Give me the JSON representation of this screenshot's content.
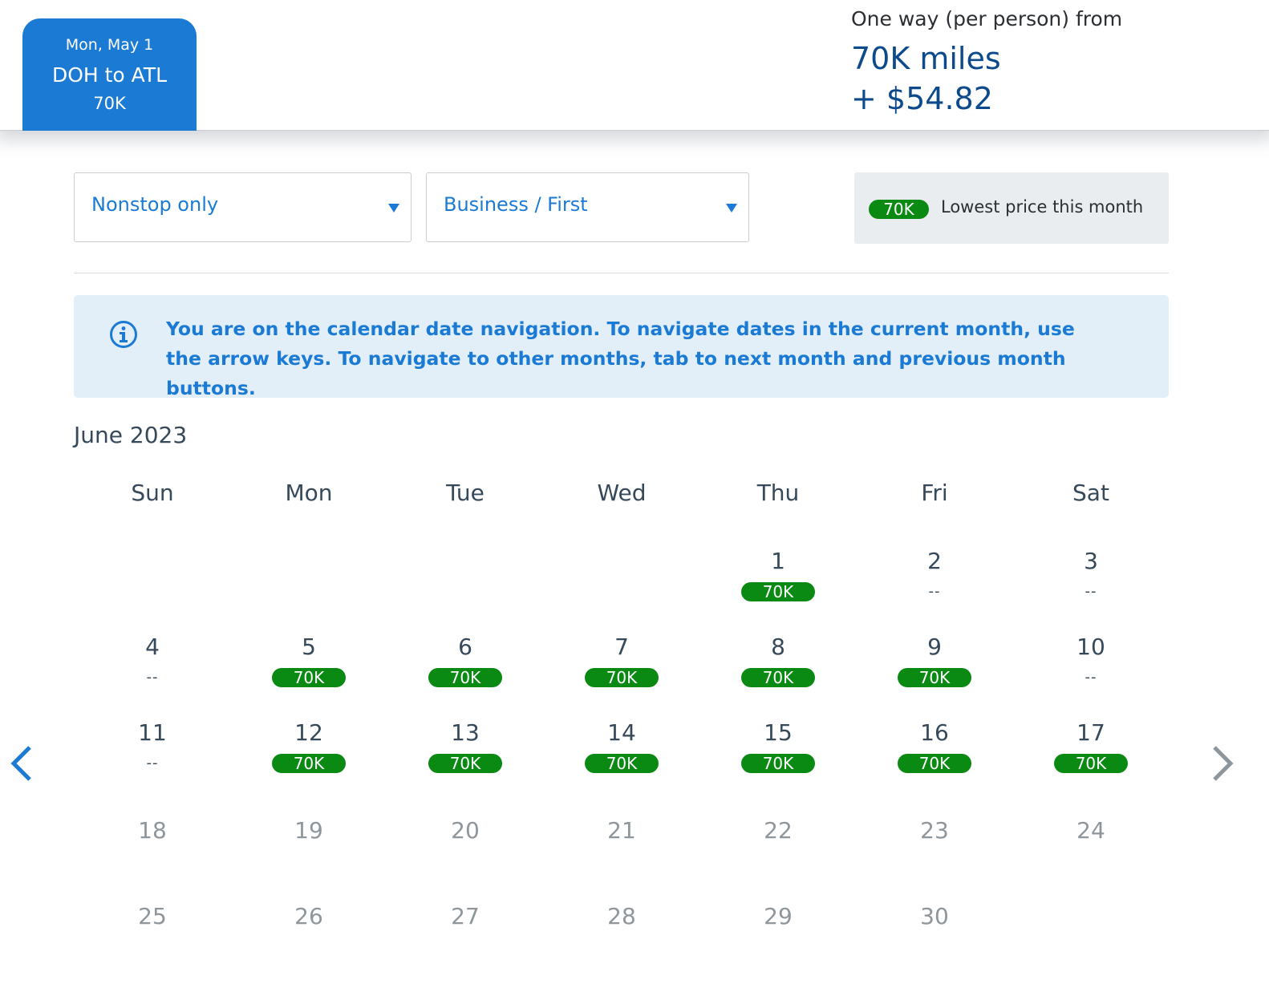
{
  "header": {
    "trip": {
      "date": "Mon, May 1",
      "route": "DOH to ATL",
      "miles": "70K"
    },
    "price": {
      "caption": "One way (per person) from",
      "miles": "70K miles",
      "cash": "+ $54.82"
    }
  },
  "filters": {
    "stops": {
      "value": "Nonstop only"
    },
    "cabin": {
      "value": "Business / First"
    }
  },
  "legend": {
    "badge": "70K",
    "text": "Lowest price this month"
  },
  "info": {
    "text": "You are on the calendar date navigation. To navigate dates in the current month, use the arrow keys. To navigate to other months, tab to next month and previous month buttons."
  },
  "calendar": {
    "month": "June 2023",
    "weekdays": [
      "Sun",
      "Mon",
      "Tue",
      "Wed",
      "Thu",
      "Fri",
      "Sat"
    ],
    "days": [
      {
        "day": "1",
        "price": "70K",
        "enabled": true
      },
      {
        "day": "2",
        "price": "--",
        "enabled": true
      },
      {
        "day": "3",
        "price": "--",
        "enabled": true
      },
      {
        "day": "4",
        "price": "--",
        "enabled": true
      },
      {
        "day": "5",
        "price": "70K",
        "enabled": true
      },
      {
        "day": "6",
        "price": "70K",
        "enabled": true
      },
      {
        "day": "7",
        "price": "70K",
        "enabled": true
      },
      {
        "day": "8",
        "price": "70K",
        "enabled": true
      },
      {
        "day": "9",
        "price": "70K",
        "enabled": true
      },
      {
        "day": "10",
        "price": "--",
        "enabled": true
      },
      {
        "day": "11",
        "price": "--",
        "enabled": true
      },
      {
        "day": "12",
        "price": "70K",
        "enabled": true
      },
      {
        "day": "13",
        "price": "70K",
        "enabled": true
      },
      {
        "day": "14",
        "price": "70K",
        "enabled": true
      },
      {
        "day": "15",
        "price": "70K",
        "enabled": true
      },
      {
        "day": "16",
        "price": "70K",
        "enabled": true
      },
      {
        "day": "17",
        "price": "70K",
        "enabled": true
      },
      {
        "day": "18",
        "price": "",
        "enabled": false
      },
      {
        "day": "19",
        "price": "",
        "enabled": false
      },
      {
        "day": "20",
        "price": "",
        "enabled": false
      },
      {
        "day": "21",
        "price": "",
        "enabled": false
      },
      {
        "day": "22",
        "price": "",
        "enabled": false
      },
      {
        "day": "23",
        "price": "",
        "enabled": false
      },
      {
        "day": "24",
        "price": "",
        "enabled": false
      },
      {
        "day": "25",
        "price": "",
        "enabled": false
      },
      {
        "day": "26",
        "price": "",
        "enabled": false
      },
      {
        "day": "27",
        "price": "",
        "enabled": false
      },
      {
        "day": "28",
        "price": "",
        "enabled": false
      },
      {
        "day": "29",
        "price": "",
        "enabled": false
      },
      {
        "day": "30",
        "price": "",
        "enabled": false
      }
    ]
  },
  "icons": {
    "info": "info-circle-icon",
    "prev": "chevron-left-icon",
    "next": "chevron-right-icon",
    "dropdown": "caret-down-icon"
  },
  "colors": {
    "brand_blue": "#1a7ad4",
    "price_green": "#0b8a13",
    "navy": "#0c4a8c",
    "info_bg": "#e2eff9"
  }
}
